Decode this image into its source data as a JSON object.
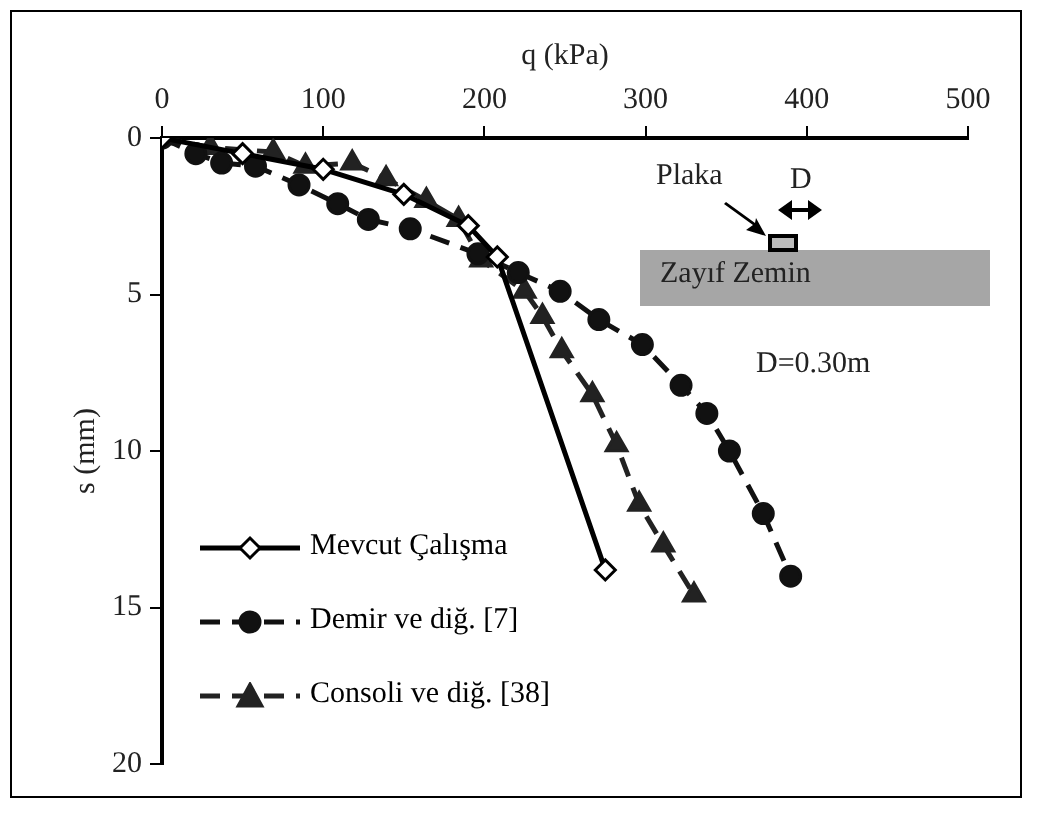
{
  "chart_data": {
    "type": "line",
    "xlabel": "q (kPa)",
    "ylabel": "s (mm)",
    "xlim": [
      0,
      500
    ],
    "xticks": [
      0,
      100,
      200,
      300,
      400,
      500
    ],
    "ylim": [
      20,
      0
    ],
    "yticks": [
      0,
      5,
      10,
      15,
      20
    ],
    "legend": "bottom left",
    "annotations": [
      "Plaka",
      "D",
      "Zayıf Zemin",
      "D=0.30m"
    ],
    "series": [
      {
        "name": "Mevcut Çalışma",
        "color": "#000000",
        "marker": "diamond",
        "line_style": "solid",
        "x": [
          0,
          50,
          100,
          150,
          190,
          208,
          275
        ],
        "values": [
          0,
          0.5,
          1.0,
          1.8,
          2.8,
          3.8,
          13.8
        ]
      },
      {
        "name": "Demir ve diğ. [7]",
        "color": "#111111",
        "marker": "circle",
        "line_style": "dashed",
        "x": [
          0,
          21,
          37,
          58,
          85,
          109,
          128,
          154,
          196,
          221,
          247,
          271,
          298,
          322,
          338,
          352,
          373,
          390
        ],
        "values": [
          0,
          0.5,
          0.8,
          0.9,
          1.5,
          2.1,
          2.6,
          2.9,
          3.7,
          4.3,
          4.9,
          5.8,
          6.6,
          7.9,
          8.8,
          10.0,
          12.0,
          14.0
        ]
      },
      {
        "name": "Consoli ve diğ. [38]",
        "color": "#222222",
        "marker": "triangle",
        "line_style": "dashed",
        "x": [
          0,
          30,
          69,
          89,
          118,
          139,
          164,
          184,
          198,
          225,
          236,
          248,
          267,
          282,
          296,
          311,
          330
        ],
        "values": [
          0,
          0.3,
          0.45,
          0.9,
          0.8,
          1.3,
          2.0,
          2.6,
          3.9,
          4.9,
          5.7,
          6.8,
          8.2,
          9.8,
          11.7,
          13.0,
          14.6
        ]
      }
    ]
  }
}
